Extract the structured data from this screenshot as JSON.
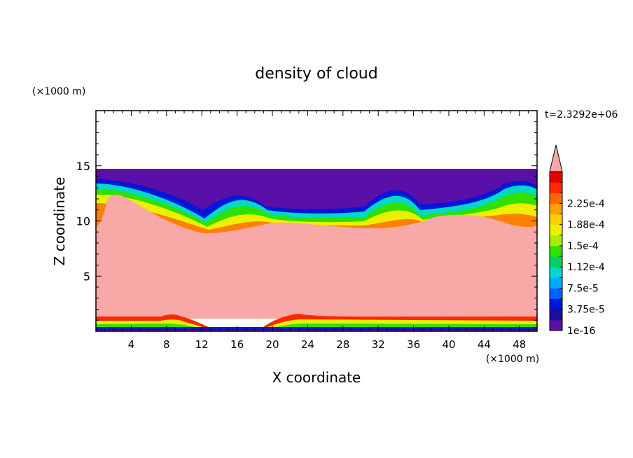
{
  "chart_data": {
    "type": "heatmap",
    "title": "density of cloud",
    "xlabel": "X coordinate",
    "ylabel": "Z coordinate",
    "x_unit": "(×1000 m)",
    "y_unit": "(×1000 m)",
    "time_label": "t=2.3292e+06",
    "xlim": [
      0,
      50
    ],
    "ylim": [
      0,
      20
    ],
    "x_ticks": [
      4,
      8,
      12,
      16,
      20,
      24,
      28,
      32,
      36,
      40,
      44,
      48
    ],
    "y_ticks": [
      5,
      10,
      15
    ],
    "domain_top": 14.7,
    "colorbar": {
      "labels": [
        "1e-16",
        "3.75e-5",
        "7.5e-5",
        "1.12e-4",
        "1.5e-4",
        "1.88e-4",
        "2.25e-4"
      ],
      "colors": [
        "#5a0fa8",
        "#1f0ca0",
        "#0016d8",
        "#0060ff",
        "#00a8ff",
        "#00d8c8",
        "#00d060",
        "#30e000",
        "#a8ec00",
        "#ecf000",
        "#ffd000",
        "#ffa000",
        "#ff6800",
        "#ff2800",
        "#e80000"
      ],
      "overflow_color": "#f9a8a8"
    }
  }
}
